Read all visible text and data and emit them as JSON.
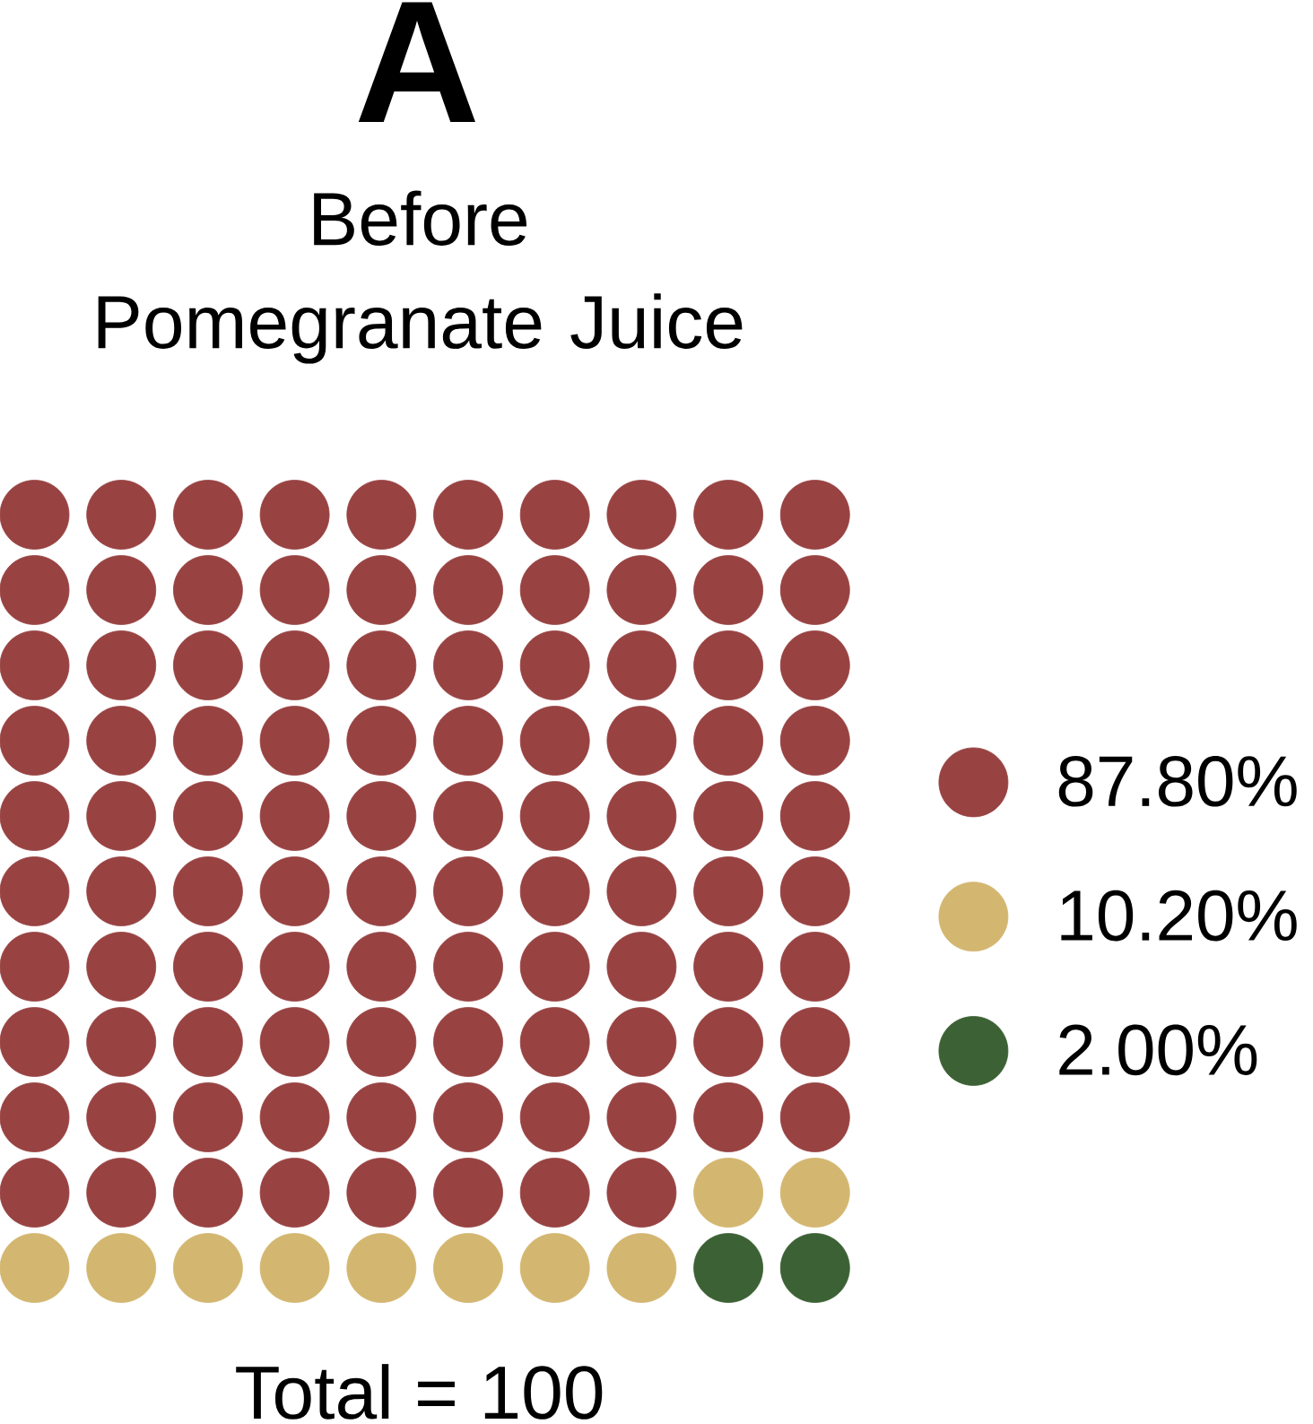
{
  "chart_data": {
    "type": "other",
    "title": "A",
    "subtitle": "Before Pomegranate Juice",
    "categories": [
      null,
      null,
      null
    ],
    "values": [
      87.8,
      10.2,
      2.0
    ],
    "value_labels": [
      "87.80%",
      "10.20%",
      "2.00%"
    ],
    "colors": [
      "#984242",
      "#d3b670",
      "#3c6134"
    ],
    "annotations": [
      "Total = 100"
    ]
  }
}
